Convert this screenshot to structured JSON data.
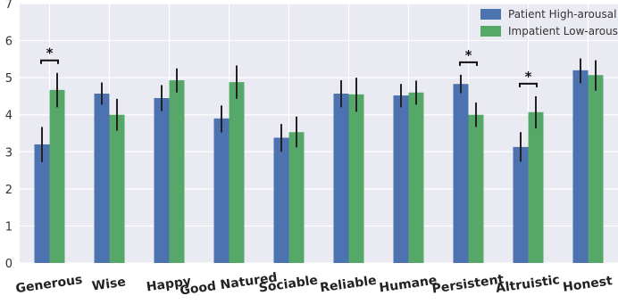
{
  "chart_data": {
    "type": "bar",
    "title": "",
    "xlabel": "",
    "ylabel": "",
    "ylim": [
      0,
      7
    ],
    "yticks": [
      0,
      1,
      2,
      3,
      4,
      5,
      6,
      7
    ],
    "grid": true,
    "legend_position": "top-right",
    "categories": [
      "Generous",
      "Wise",
      "Happy",
      "Good Natured",
      "Sociable",
      "Reliable",
      "Humane",
      "Persistent",
      "Altruistic",
      "Honest"
    ],
    "series": [
      {
        "name": "Patient High-arousal",
        "color": "#4c72b0",
        "values": [
          3.2,
          4.57,
          4.45,
          3.9,
          3.38,
          4.57,
          4.52,
          4.83,
          3.13,
          5.2
        ],
        "error_low": [
          2.72,
          4.27,
          4.1,
          3.52,
          3.0,
          4.2,
          4.2,
          4.58,
          2.73,
          4.85
        ],
        "error_high": [
          3.67,
          4.87,
          4.8,
          4.25,
          3.75,
          4.93,
          4.83,
          5.08,
          3.53,
          5.52
        ]
      },
      {
        "name": "Impatient Low-arousal",
        "color": "#55a868",
        "values": [
          4.67,
          4.0,
          4.93,
          4.88,
          3.53,
          4.55,
          4.6,
          4.0,
          4.07,
          5.07
        ],
        "error_low": [
          4.2,
          3.57,
          4.6,
          4.43,
          3.12,
          4.08,
          4.27,
          3.67,
          3.63,
          4.65
        ],
        "error_high": [
          5.13,
          4.43,
          5.25,
          5.33,
          3.95,
          5.0,
          4.92,
          4.33,
          4.5,
          5.47
        ]
      }
    ],
    "significance": [
      {
        "category": "Generous",
        "label": "*"
      },
      {
        "category": "Persistent",
        "label": "*"
      },
      {
        "category": "Altruistic",
        "label": "*"
      }
    ]
  },
  "colors": {
    "plot_background": "#eaeaf2",
    "grid": "#ffffff",
    "error_bar": "#222222"
  }
}
